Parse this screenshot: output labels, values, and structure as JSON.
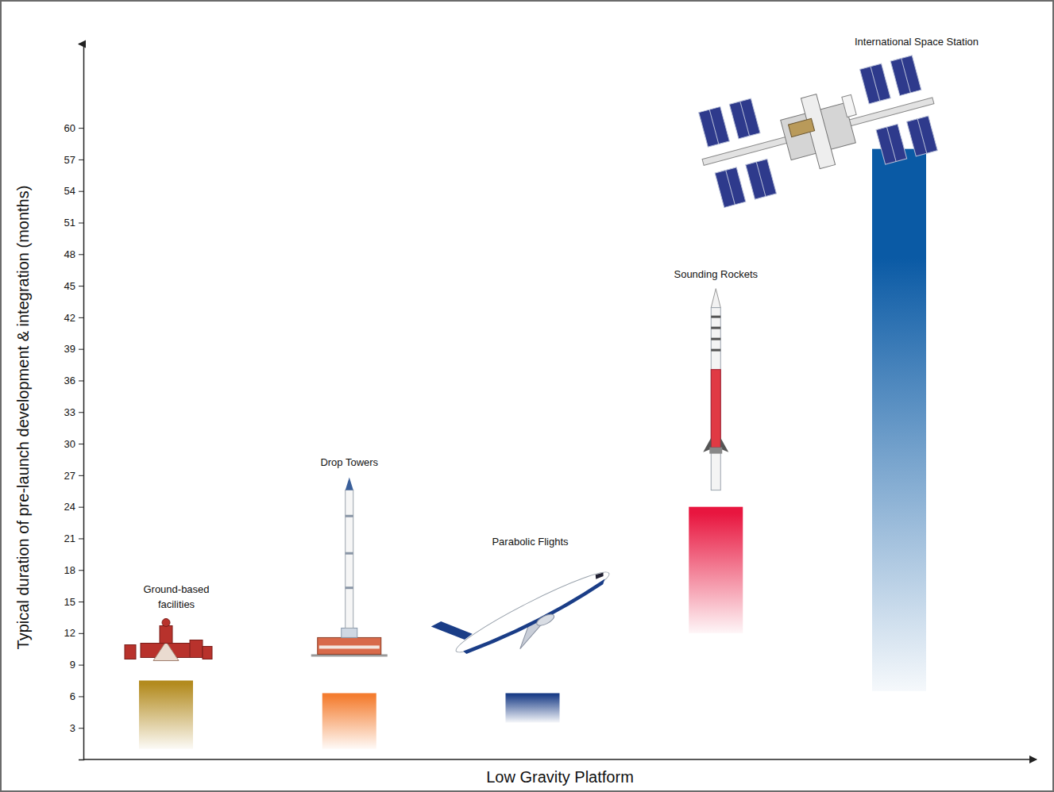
{
  "chart_data": {
    "type": "bar",
    "x_label": "Low Gravity Platform",
    "y_label": "Typical duration of pre-launch development & integration (months)",
    "categories": [
      "Ground-based facilities",
      "Drop Towers",
      "Parabolic Flights",
      "Sounding Rockets",
      "International Space Station"
    ],
    "values": [
      7.5,
      6.3,
      6.3,
      24,
      58
    ],
    "low": [
      1,
      1,
      3.5,
      12,
      6.5
    ],
    "colors": [
      "#b38b1f",
      "#f47d30",
      "#1a3d87",
      "#e8163f",
      "#0a5aa5"
    ],
    "ylim": [
      0,
      68
    ],
    "yticks": [
      3,
      6,
      9,
      12,
      15,
      18,
      21,
      24,
      27,
      30,
      33,
      36,
      39,
      42,
      45,
      48,
      51,
      54,
      57,
      60
    ],
    "grid": false,
    "tick_labels": "y"
  }
}
